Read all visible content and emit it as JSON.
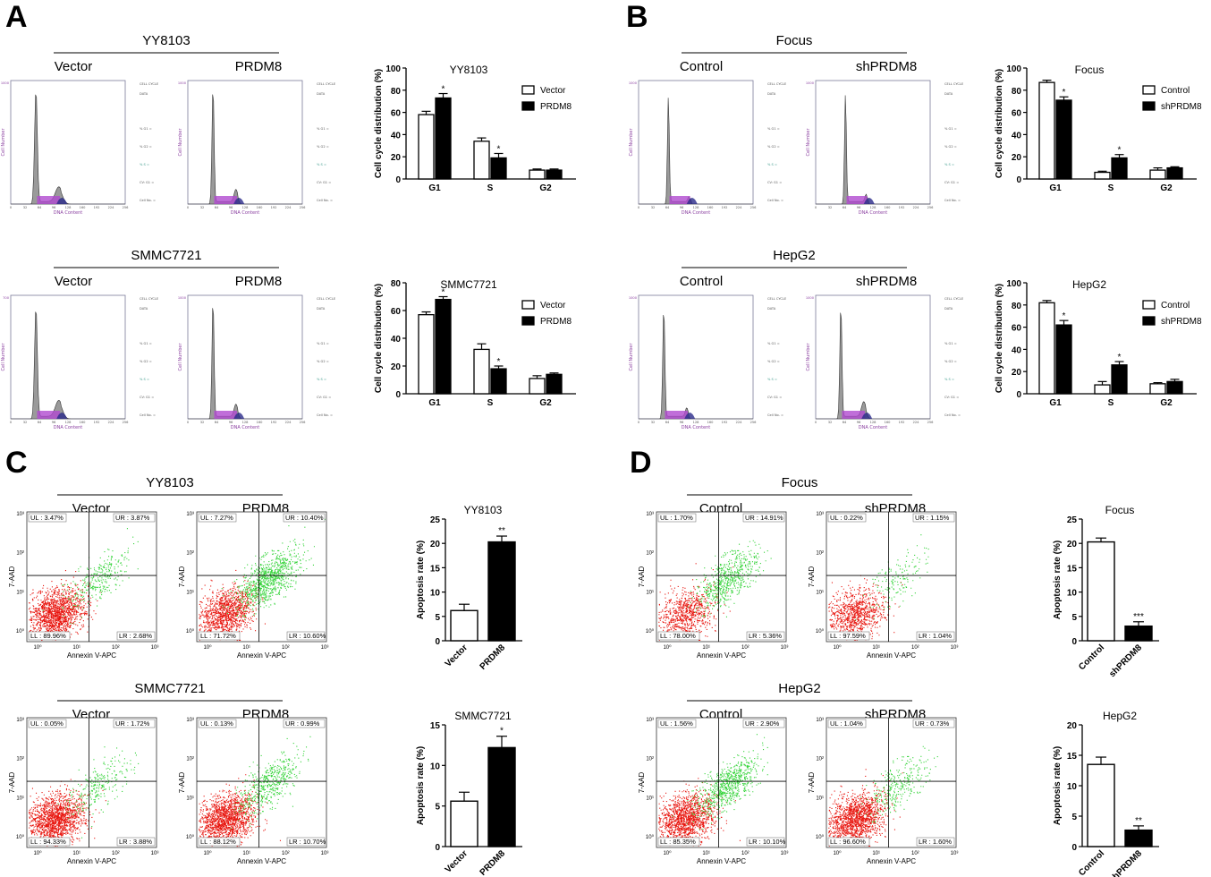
{
  "panels": [
    {
      "label": "A",
      "rows": [
        {
          "title": "YY8103",
          "conditions": [
            "Vector",
            "PRDM8"
          ],
          "histograms": [
            {
              "peaks": [
                {
                  "pos": 0.22,
                  "h": 0.92,
                  "w": 0.012
                },
                {
                  "pos": 0.42,
                  "h": 0.12,
                  "w": 0.03
                }
              ],
              "ymax": "1000"
            },
            {
              "peaks": [
                {
                  "pos": 0.22,
                  "h": 0.95,
                  "w": 0.009
                },
                {
                  "pos": 0.42,
                  "h": 0.1,
                  "w": 0.016
                }
              ],
              "ymax": "1000"
            }
          ],
          "chart_data": {
            "type": "bar",
            "title": "YY8103",
            "ylabel": "Cell cycle distribution (%)",
            "ylim": [
              0,
              100
            ],
            "yticks": [
              0,
              20,
              40,
              60,
              80,
              100
            ],
            "categories": [
              "G1",
              "S",
              "G2"
            ],
            "series": [
              {
                "name": "Vector",
                "fill": "#ffffff",
                "values": [
                  58,
                  34,
                  8
                ],
                "err": [
                  3,
                  3,
                  1
                ]
              },
              {
                "name": "PRDM8",
                "fill": "#000000",
                "values": [
                  73,
                  19,
                  8
                ],
                "err": [
                  4,
                  4,
                  1
                ]
              }
            ],
            "stars": [
              {
                "series": 1,
                "cat": 0,
                "text": "*"
              },
              {
                "series": 1,
                "cat": 1,
                "text": "*"
              }
            ]
          }
        },
        {
          "title": "SMMC7721",
          "conditions": [
            "Vector",
            "PRDM8"
          ],
          "histograms": [
            {
              "peaks": [
                {
                  "pos": 0.22,
                  "h": 0.9,
                  "w": 0.012
                },
                {
                  "pos": 0.42,
                  "h": 0.13,
                  "w": 0.03
                }
              ],
              "ymax": "700"
            },
            {
              "peaks": [
                {
                  "pos": 0.22,
                  "h": 0.96,
                  "w": 0.009
                },
                {
                  "pos": 0.42,
                  "h": 0.1,
                  "w": 0.016
                }
              ],
              "ymax": "1000"
            }
          ],
          "chart_data": {
            "type": "bar",
            "title": "SMMC7721",
            "ylabel": "Cell cycle distribution (%)",
            "ylim": [
              0,
              80
            ],
            "yticks": [
              0,
              20,
              40,
              60,
              80
            ],
            "categories": [
              "G1",
              "S",
              "G2"
            ],
            "series": [
              {
                "name": "Vector",
                "fill": "#ffffff",
                "values": [
                  57,
                  32,
                  11
                ],
                "err": [
                  2,
                  4,
                  2
                ]
              },
              {
                "name": "PRDM8",
                "fill": "#000000",
                "values": [
                  68,
                  18,
                  14
                ],
                "err": [
                  2,
                  2,
                  1
                ]
              }
            ],
            "stars": [
              {
                "series": 1,
                "cat": 0,
                "text": "*"
              },
              {
                "series": 1,
                "cat": 1,
                "text": "*"
              }
            ]
          }
        }
      ]
    },
    {
      "label": "B",
      "rows": [
        {
          "title": "Focus",
          "conditions": [
            "Control",
            "shPRDM8"
          ],
          "histograms": [
            {
              "peaks": [
                {
                  "pos": 0.26,
                  "h": 0.88,
                  "w": 0.008
                },
                {
                  "pos": 0.44,
                  "h": 0.04,
                  "w": 0.01
                }
              ],
              "ymax": "1000"
            },
            {
              "peaks": [
                {
                  "pos": 0.26,
                  "h": 0.9,
                  "w": 0.008
                },
                {
                  "pos": 0.44,
                  "h": 0.06,
                  "w": 0.01
                }
              ],
              "ymax": "1000"
            }
          ],
          "chart_data": {
            "type": "bar",
            "title": "Focus",
            "ylabel": "Cell cycle distribution (%)",
            "ylim": [
              0,
              100
            ],
            "yticks": [
              0,
              20,
              40,
              60,
              80,
              100
            ],
            "categories": [
              "G1",
              "S",
              "G2"
            ],
            "series": [
              {
                "name": "Control",
                "fill": "#ffffff",
                "values": [
                  87,
                  6,
                  8
                ],
                "err": [
                  2,
                  1,
                  2
                ]
              },
              {
                "name": "shPRDM8",
                "fill": "#000000",
                "values": [
                  71,
                  19,
                  10
                ],
                "err": [
                  3,
                  3,
                  1
                ]
              }
            ],
            "stars": [
              {
                "series": 1,
                "cat": 0,
                "text": "*"
              },
              {
                "series": 1,
                "cat": 1,
                "text": "*"
              }
            ]
          }
        },
        {
          "title": "HepG2",
          "conditions": [
            "Control",
            "shPRDM8"
          ],
          "histograms": [
            {
              "peaks": [
                {
                  "pos": 0.22,
                  "h": 0.9,
                  "w": 0.009
                },
                {
                  "pos": 0.42,
                  "h": 0.07,
                  "w": 0.012
                }
              ],
              "ymax": "1000"
            },
            {
              "peaks": [
                {
                  "pos": 0.22,
                  "h": 0.92,
                  "w": 0.009
                },
                {
                  "pos": 0.42,
                  "h": 0.12,
                  "w": 0.02
                }
              ],
              "ymax": "1000"
            }
          ],
          "chart_data": {
            "type": "bar",
            "title": "HepG2",
            "ylabel": "Cell cycle distribution (%)",
            "ylim": [
              0,
              100
            ],
            "yticks": [
              0,
              20,
              40,
              60,
              80,
              100
            ],
            "categories": [
              "G1",
              "S",
              "G2"
            ],
            "series": [
              {
                "name": "Control",
                "fill": "#ffffff",
                "values": [
                  82,
                  8,
                  9
                ],
                "err": [
                  2,
                  3,
                  1
                ]
              },
              {
                "name": "shPRDM8",
                "fill": "#000000",
                "values": [
                  62,
                  26,
                  11
                ],
                "err": [
                  4,
                  3,
                  2
                ]
              }
            ],
            "stars": [
              {
                "series": 1,
                "cat": 0,
                "text": "*"
              },
              {
                "series": 1,
                "cat": 1,
                "text": "*"
              }
            ]
          }
        }
      ]
    },
    {
      "label": "C",
      "rows": [
        {
          "title": "YY8103",
          "conditions": [
            "Vector",
            "PRDM8"
          ],
          "flows": [
            {
              "UL": "UL : 3.47%",
              "UR": "UR : 3.87%",
              "LL": "LL : 89.96%",
              "LR": "LR : 2.68%",
              "red": 1500,
              "green": 300
            },
            {
              "UL": "UL : 7.27%",
              "UR": "UR : 10.40%",
              "LL": "LL : 71.72%",
              "LR": "LR : 10.60%",
              "red": 1200,
              "green": 900
            }
          ],
          "chart_data": {
            "type": "bar",
            "title": "YY8103",
            "ylabel": "Apoptosis rate (%)",
            "ylim": [
              0,
              25
            ],
            "yticks": [
              0,
              5,
              10,
              15,
              20,
              25
            ],
            "categories": [
              "Vector",
              "PRDM8"
            ],
            "values": [
              6.2,
              20.3
            ],
            "err": [
              1.3,
              1.2
            ],
            "fills": [
              "#ffffff",
              "#000000"
            ],
            "stars": [
              "",
              "**"
            ]
          }
        },
        {
          "title": "SMMC7721",
          "conditions": [
            "Vector",
            "PRDM8"
          ],
          "flows": [
            {
              "UL": "UL : 0.05%",
              "UR": "UR : 1.72%",
              "LL": "LL : 94.33%",
              "LR": "LR : 3.88%",
              "red": 1600,
              "green": 250
            },
            {
              "UL": "UL : 0.13%",
              "UR": "UR : 0.99%",
              "LL": "LL : 88.12%",
              "LR": "LR : 10.70%",
              "red": 1600,
              "green": 500
            }
          ],
          "chart_data": {
            "type": "bar",
            "title": "SMMC7721",
            "ylabel": "Apoptosis rate (%)",
            "ylim": [
              0,
              15
            ],
            "yticks": [
              0,
              5,
              10,
              15
            ],
            "categories": [
              "Vector",
              "PRDM8"
            ],
            "values": [
              5.6,
              12.2
            ],
            "err": [
              1.1,
              1.4
            ],
            "fills": [
              "#ffffff",
              "#000000"
            ],
            "stars": [
              "",
              "*"
            ]
          }
        }
      ]
    },
    {
      "label": "D",
      "rows": [
        {
          "title": "Focus",
          "conditions": [
            "Control",
            "shPRDM8"
          ],
          "flows": [
            {
              "UL": "UL : 1.70%",
              "UR": "UR : 14.91%",
              "LL": "LL : 78.00%",
              "LR": "LR : 5.36%",
              "red": 800,
              "green": 600
            },
            {
              "UL": "UL : 0.22%",
              "UR": "UR : 1.15%",
              "LL": "LL : 97.59%",
              "LR": "LR : 1.04%",
              "red": 900,
              "green": 150
            }
          ],
          "chart_data": {
            "type": "bar",
            "title": "Focus",
            "ylabel": "Apoptosis rate (%)",
            "ylim": [
              0,
              25
            ],
            "yticks": [
              0,
              5,
              10,
              15,
              20,
              25
            ],
            "categories": [
              "Control",
              "shPRDM8"
            ],
            "values": [
              20.3,
              3.0
            ],
            "err": [
              0.8,
              0.9
            ],
            "fills": [
              "#ffffff",
              "#000000"
            ],
            "stars": [
              "",
              "***"
            ]
          }
        },
        {
          "title": "HepG2",
          "conditions": [
            "Control",
            "shPRDM8"
          ],
          "flows": [
            {
              "UL": "UL : 1.56%",
              "UR": "UR : 2.90%",
              "LL": "LL : 85.35%",
              "LR": "LR : 10.10%",
              "red": 1400,
              "green": 700
            },
            {
              "UL": "UL : 1.04%",
              "UR": "UR : 0.73%",
              "LL": "LL : 96.60%",
              "LR": "LR : 1.60%",
              "red": 1500,
              "green": 300
            }
          ],
          "chart_data": {
            "type": "bar",
            "title": "HepG2",
            "ylabel": "Apoptosis rate (%)",
            "ylim": [
              0,
              20
            ],
            "yticks": [
              0,
              5,
              10,
              15,
              20
            ],
            "categories": [
              "Control",
              "shPRDM8"
            ],
            "values": [
              13.5,
              2.7
            ],
            "err": [
              1.2,
              0.7
            ],
            "fills": [
              "#ffffff",
              "#000000"
            ],
            "stars": [
              "",
              "**"
            ]
          }
        }
      ]
    }
  ],
  "cytometer": {
    "x_axis": "DNA Content",
    "y_axis": "Cell Number",
    "xticks": [
      "0",
      "32",
      "64",
      "96",
      "128",
      "160",
      "192",
      "224",
      "256"
    ],
    "side_text": [
      "CELL CYCLE",
      "DATA",
      "% G1 =",
      "% G2 =",
      "% S =",
      "CV: G1 =",
      "Cell No. ="
    ]
  },
  "flow_axes": {
    "x_axis": "Annexin V-APC",
    "y_axis": "7-AAD",
    "ticks": [
      "10⁰",
      "10¹",
      "10²",
      "10³"
    ]
  },
  "colors": {
    "red": "#e8150e",
    "green": "#35d43a",
    "gray": "#9a9a9a",
    "purple": "#b04ad0",
    "navy": "#2a2a8a"
  }
}
